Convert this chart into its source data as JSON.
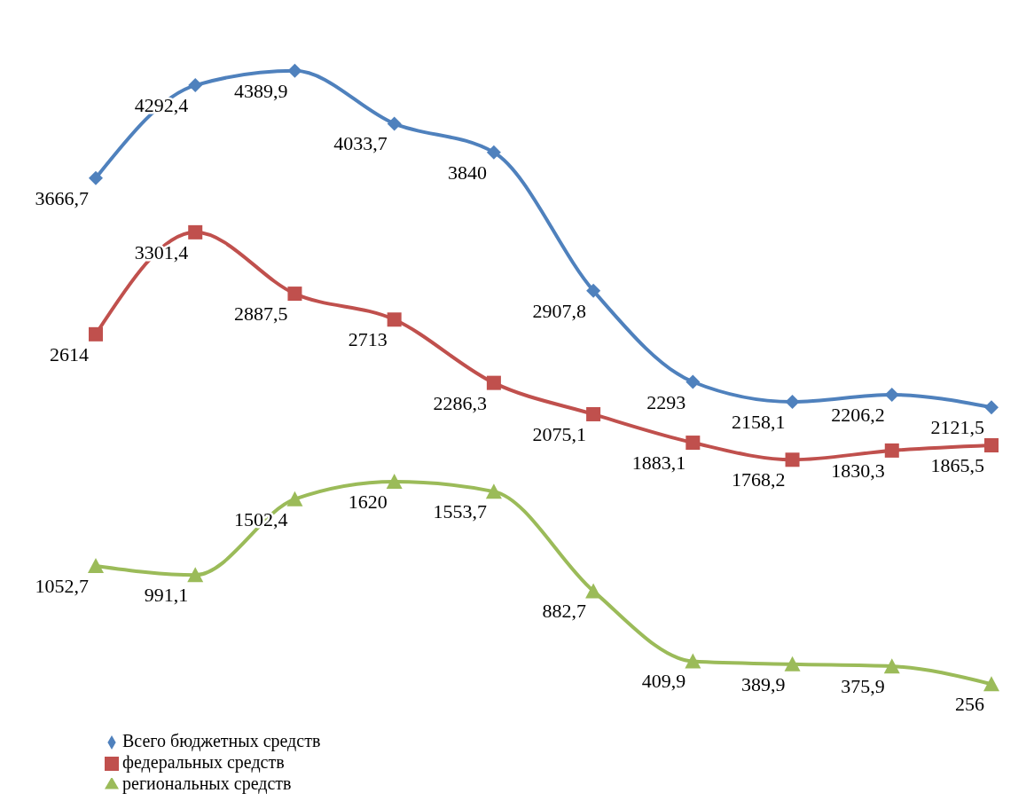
{
  "chart_data": {
    "type": "line",
    "categories": [
      null,
      null,
      null,
      null,
      null,
      null,
      null,
      null,
      null,
      null
    ],
    "legend": "bottom left",
    "line_style": "solid",
    "series": [
      {
        "name": "Всего бюджетных средств",
        "color": "#4f81bd",
        "marker": "diamond",
        "values": [
          3666.7,
          4292.4,
          4389.9,
          4033.7,
          3840,
          2907.8,
          2293,
          2158.1,
          2206.2,
          2121.5
        ],
        "value_labels": [
          "3666,7",
          "4292,4",
          "4389,9",
          "4033,7",
          "3840",
          "2907,8",
          "2293",
          "2158,1",
          "2206,2",
          "2121,5"
        ]
      },
      {
        "name": "федеральных средств",
        "color": "#c0504d",
        "marker": "square",
        "values": [
          2614,
          3301.4,
          2887.5,
          2713,
          2286.3,
          2075.1,
          1883.1,
          1768.2,
          1830.3,
          1865.5
        ],
        "value_labels": [
          "2614",
          "3301,4",
          "2887,5",
          "2713",
          "2286,3",
          "2075,1",
          "1883,1",
          "1768,2",
          "1830,3",
          "1865,5"
        ]
      },
      {
        "name": "региональных средств",
        "color": "#9bbb59",
        "marker": "triangle",
        "values": [
          1052.7,
          991.1,
          1502.4,
          1620,
          1553.7,
          882.7,
          409.9,
          389.9,
          375.9,
          256
        ],
        "value_labels": [
          "1052,7",
          "991,1",
          "1502,4",
          "1620",
          "1553,7",
          "882,7",
          "409,9",
          "389,9",
          "375,9",
          "256"
        ]
      }
    ]
  }
}
